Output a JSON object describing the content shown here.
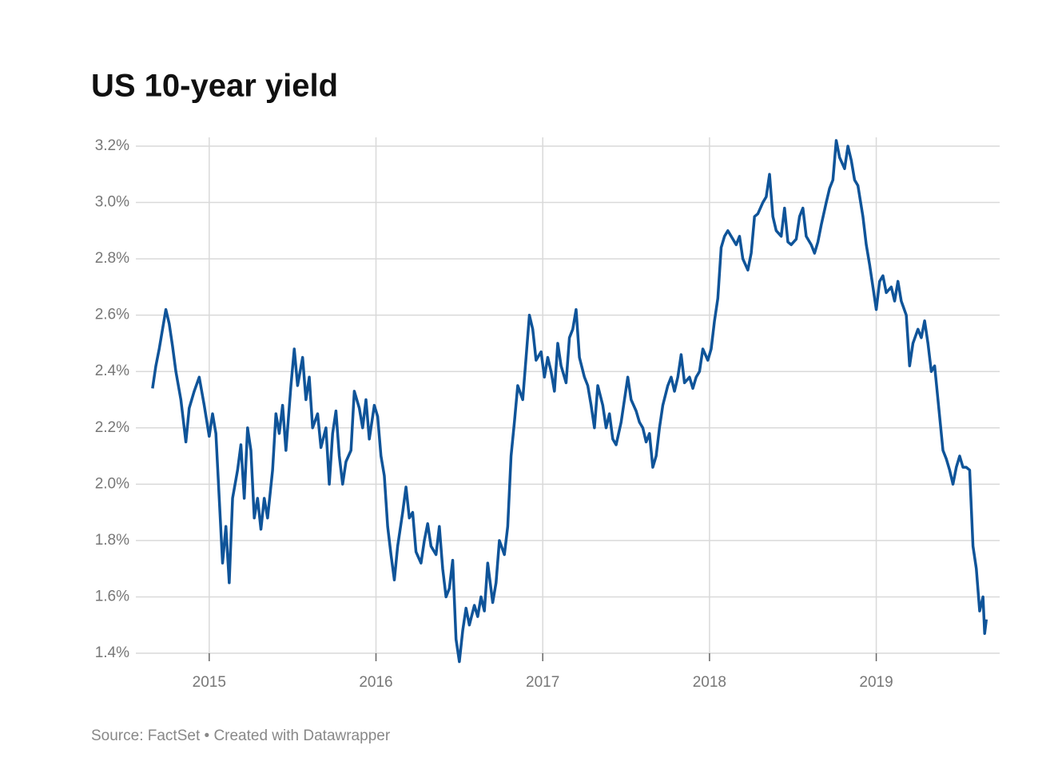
{
  "chart_data": {
    "type": "line",
    "title": "US 10-year yield",
    "source": "Source: FactSet • Created with Datawrapper",
    "color": "#0f5499",
    "grid": true,
    "xlim": [
      2014.56,
      2019.74
    ],
    "xticks": [
      2015,
      2016,
      2017,
      2018,
      2019
    ],
    "ylim": [
      1.4,
      3.2
    ],
    "yticks": [
      {
        "value": 1.4,
        "label": "1.4%"
      },
      {
        "value": 1.6,
        "label": "1.6%"
      },
      {
        "value": 1.8,
        "label": "1.8%"
      },
      {
        "value": 2.0,
        "label": "2.0%"
      },
      {
        "value": 2.2,
        "label": "2.2%"
      },
      {
        "value": 2.4,
        "label": "2.4%"
      },
      {
        "value": 2.6,
        "label": "2.6%"
      },
      {
        "value": 2.8,
        "label": "2.8%"
      },
      {
        "value": 3.0,
        "label": "3.0%"
      },
      {
        "value": 3.2,
        "label": "3.2%"
      }
    ],
    "x": [
      2014.66,
      2014.68,
      2014.7,
      2014.72,
      2014.74,
      2014.76,
      2014.78,
      2014.8,
      2014.83,
      2014.86,
      2014.88,
      2014.91,
      2014.94,
      2014.97,
      2015.0,
      2015.02,
      2015.04,
      2015.06,
      2015.08,
      2015.1,
      2015.12,
      2015.14,
      2015.17,
      2015.19,
      2015.21,
      2015.23,
      2015.25,
      2015.27,
      2015.29,
      2015.31,
      2015.33,
      2015.35,
      2015.38,
      2015.4,
      2015.42,
      2015.44,
      2015.46,
      2015.49,
      2015.51,
      2015.53,
      2015.56,
      2015.58,
      2015.6,
      2015.62,
      2015.65,
      2015.67,
      2015.7,
      2015.72,
      2015.74,
      2015.76,
      2015.78,
      2015.8,
      2015.82,
      2015.85,
      2015.87,
      2015.9,
      2015.92,
      2015.94,
      2015.96,
      2015.99,
      2016.01,
      2016.03,
      2016.05,
      2016.07,
      2016.09,
      2016.11,
      2016.13,
      2016.16,
      2016.18,
      2016.2,
      2016.22,
      2016.24,
      2016.27,
      2016.29,
      2016.31,
      2016.33,
      2016.36,
      2016.38,
      2016.4,
      2016.42,
      2016.44,
      2016.46,
      2016.48,
      2016.5,
      2016.52,
      2016.54,
      2016.56,
      2016.59,
      2016.61,
      2016.63,
      2016.65,
      2016.67,
      2016.7,
      2016.72,
      2016.74,
      2016.77,
      2016.79,
      2016.81,
      2016.83,
      2016.85,
      2016.88,
      2016.9,
      2016.92,
      2016.94,
      2016.96,
      2016.99,
      2017.01,
      2017.03,
      2017.05,
      2017.07,
      2017.09,
      2017.11,
      2017.14,
      2017.16,
      2017.18,
      2017.2,
      2017.22,
      2017.25,
      2017.27,
      2017.29,
      2017.31,
      2017.33,
      2017.36,
      2017.38,
      2017.4,
      2017.42,
      2017.44,
      2017.47,
      2017.49,
      2017.51,
      2017.53,
      2017.56,
      2017.58,
      2017.6,
      2017.62,
      2017.64,
      2017.66,
      2017.68,
      2017.7,
      2017.72,
      2017.75,
      2017.77,
      2017.79,
      2017.81,
      2017.83,
      2017.85,
      2017.88,
      2017.9,
      2017.92,
      2017.94,
      2017.96,
      2017.99,
      2018.01,
      2018.03,
      2018.05,
      2018.07,
      2018.09,
      2018.11,
      2018.14,
      2018.16,
      2018.18,
      2018.2,
      2018.23,
      2018.25,
      2018.27,
      2018.29,
      2018.32,
      2018.34,
      2018.36,
      2018.38,
      2018.4,
      2018.43,
      2018.45,
      2018.47,
      2018.49,
      2018.52,
      2018.54,
      2018.56,
      2018.58,
      2018.61,
      2018.63,
      2018.65,
      2018.67,
      2018.7,
      2018.72,
      2018.74,
      2018.76,
      2018.78,
      2018.81,
      2018.83,
      2018.85,
      2018.87,
      2018.89,
      2018.92,
      2018.94,
      2018.96,
      2018.98,
      2019.0,
      2019.02,
      2019.04,
      2019.06,
      2019.09,
      2019.11,
      2019.13,
      2019.15,
      2019.18,
      2019.2,
      2019.22,
      2019.25,
      2019.27,
      2019.29,
      2019.31,
      2019.33,
      2019.35,
      2019.37,
      2019.4,
      2019.42,
      2019.44,
      2019.46,
      2019.48,
      2019.5,
      2019.52,
      2019.54,
      2019.56,
      2019.58,
      2019.6,
      2019.62,
      2019.64,
      2019.65,
      2019.66
    ],
    "values": [
      2.34,
      2.42,
      2.48,
      2.55,
      2.62,
      2.57,
      2.49,
      2.4,
      2.3,
      2.15,
      2.27,
      2.33,
      2.38,
      2.28,
      2.17,
      2.25,
      2.18,
      1.95,
      1.72,
      1.85,
      1.65,
      1.95,
      2.05,
      2.14,
      1.95,
      2.2,
      2.12,
      1.88,
      1.95,
      1.84,
      1.95,
      1.88,
      2.05,
      2.25,
      2.18,
      2.28,
      2.12,
      2.35,
      2.48,
      2.35,
      2.45,
      2.3,
      2.38,
      2.2,
      2.25,
      2.13,
      2.2,
      2.0,
      2.18,
      2.26,
      2.1,
      2.0,
      2.08,
      2.12,
      2.33,
      2.27,
      2.2,
      2.3,
      2.16,
      2.28,
      2.24,
      2.1,
      2.03,
      1.85,
      1.75,
      1.66,
      1.78,
      1.9,
      1.99,
      1.88,
      1.9,
      1.76,
      1.72,
      1.8,
      1.86,
      1.78,
      1.75,
      1.85,
      1.7,
      1.6,
      1.63,
      1.73,
      1.45,
      1.37,
      1.48,
      1.56,
      1.5,
      1.57,
      1.53,
      1.6,
      1.55,
      1.72,
      1.58,
      1.65,
      1.8,
      1.75,
      1.85,
      2.1,
      2.22,
      2.35,
      2.3,
      2.45,
      2.6,
      2.55,
      2.44,
      2.47,
      2.38,
      2.45,
      2.4,
      2.33,
      2.5,
      2.42,
      2.36,
      2.52,
      2.55,
      2.62,
      2.45,
      2.38,
      2.35,
      2.28,
      2.2,
      2.35,
      2.28,
      2.2,
      2.25,
      2.16,
      2.14,
      2.22,
      2.3,
      2.38,
      2.3,
      2.26,
      2.22,
      2.2,
      2.15,
      2.18,
      2.06,
      2.1,
      2.2,
      2.28,
      2.35,
      2.38,
      2.33,
      2.38,
      2.46,
      2.36,
      2.38,
      2.34,
      2.38,
      2.4,
      2.48,
      2.44,
      2.48,
      2.58,
      2.66,
      2.84,
      2.88,
      2.9,
      2.87,
      2.85,
      2.88,
      2.8,
      2.76,
      2.82,
      2.95,
      2.96,
      3.0,
      3.02,
      3.1,
      2.95,
      2.9,
      2.88,
      2.98,
      2.86,
      2.85,
      2.87,
      2.95,
      2.98,
      2.88,
      2.85,
      2.82,
      2.86,
      2.92,
      3.0,
      3.05,
      3.08,
      3.22,
      3.16,
      3.12,
      3.2,
      3.15,
      3.08,
      3.06,
      2.95,
      2.85,
      2.78,
      2.7,
      2.62,
      2.72,
      2.74,
      2.68,
      2.7,
      2.65,
      2.72,
      2.65,
      2.6,
      2.42,
      2.5,
      2.55,
      2.52,
      2.58,
      2.5,
      2.4,
      2.42,
      2.3,
      2.12,
      2.09,
      2.05,
      2.0,
      2.06,
      2.1,
      2.06,
      2.06,
      2.05,
      1.78,
      1.7,
      1.55,
      1.6,
      1.47,
      1.52
    ]
  }
}
